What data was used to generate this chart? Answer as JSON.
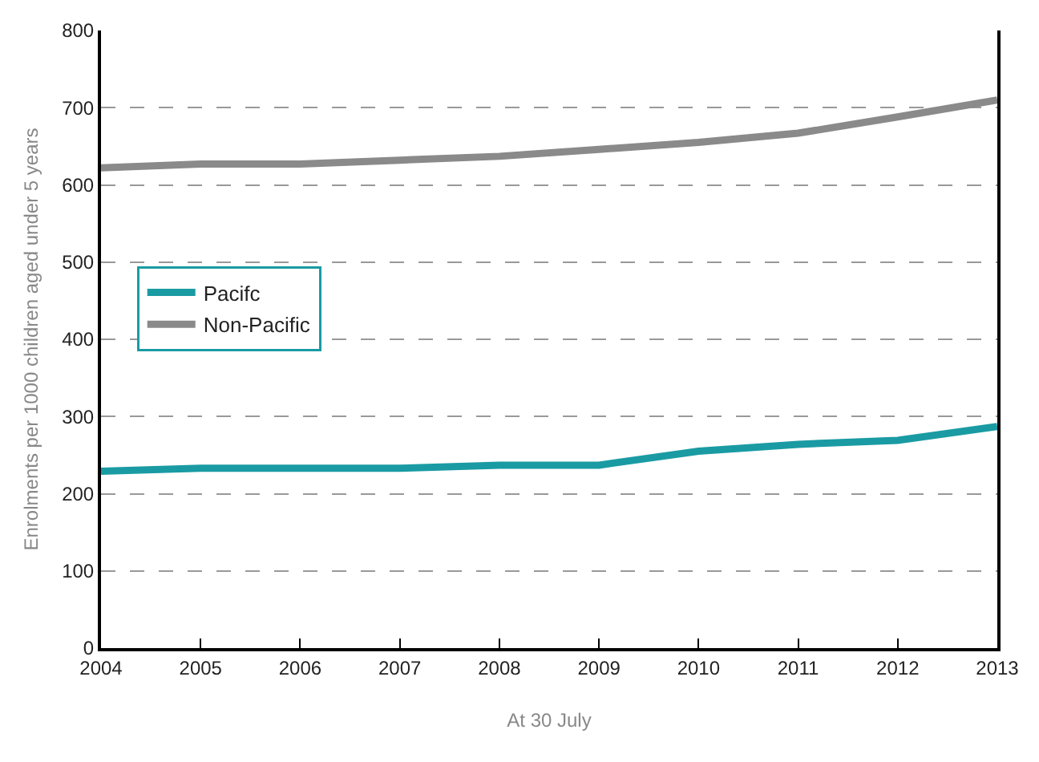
{
  "chart_data": {
    "type": "line",
    "xlabel": "At 30 July",
    "ylabel": "Enrolments per 1000 children aged under 5 years",
    "x": [
      2004,
      2005,
      2006,
      2007,
      2008,
      2009,
      2010,
      2011,
      2012,
      2013
    ],
    "series": [
      {
        "name": "Pacifc",
        "color": "#1a9ba3",
        "values": [
          229,
          233,
          233,
          233,
          237,
          237,
          255,
          264,
          269,
          287
        ]
      },
      {
        "name": "Non-Pacific",
        "color": "#8a8a8a",
        "values": [
          622,
          627,
          627,
          632,
          637,
          646,
          655,
          667,
          688,
          710
        ]
      }
    ],
    "xlim": [
      2004,
      2013
    ],
    "xticks": [
      2004,
      2005,
      2006,
      2007,
      2008,
      2009,
      2010,
      2011,
      2012,
      2013
    ],
    "ylim": [
      0,
      800
    ],
    "yticks": [
      0,
      100,
      200,
      300,
      400,
      500,
      600,
      700,
      800
    ],
    "grid": "y",
    "legend": "left",
    "marker": "none",
    "line_style": "solid"
  }
}
